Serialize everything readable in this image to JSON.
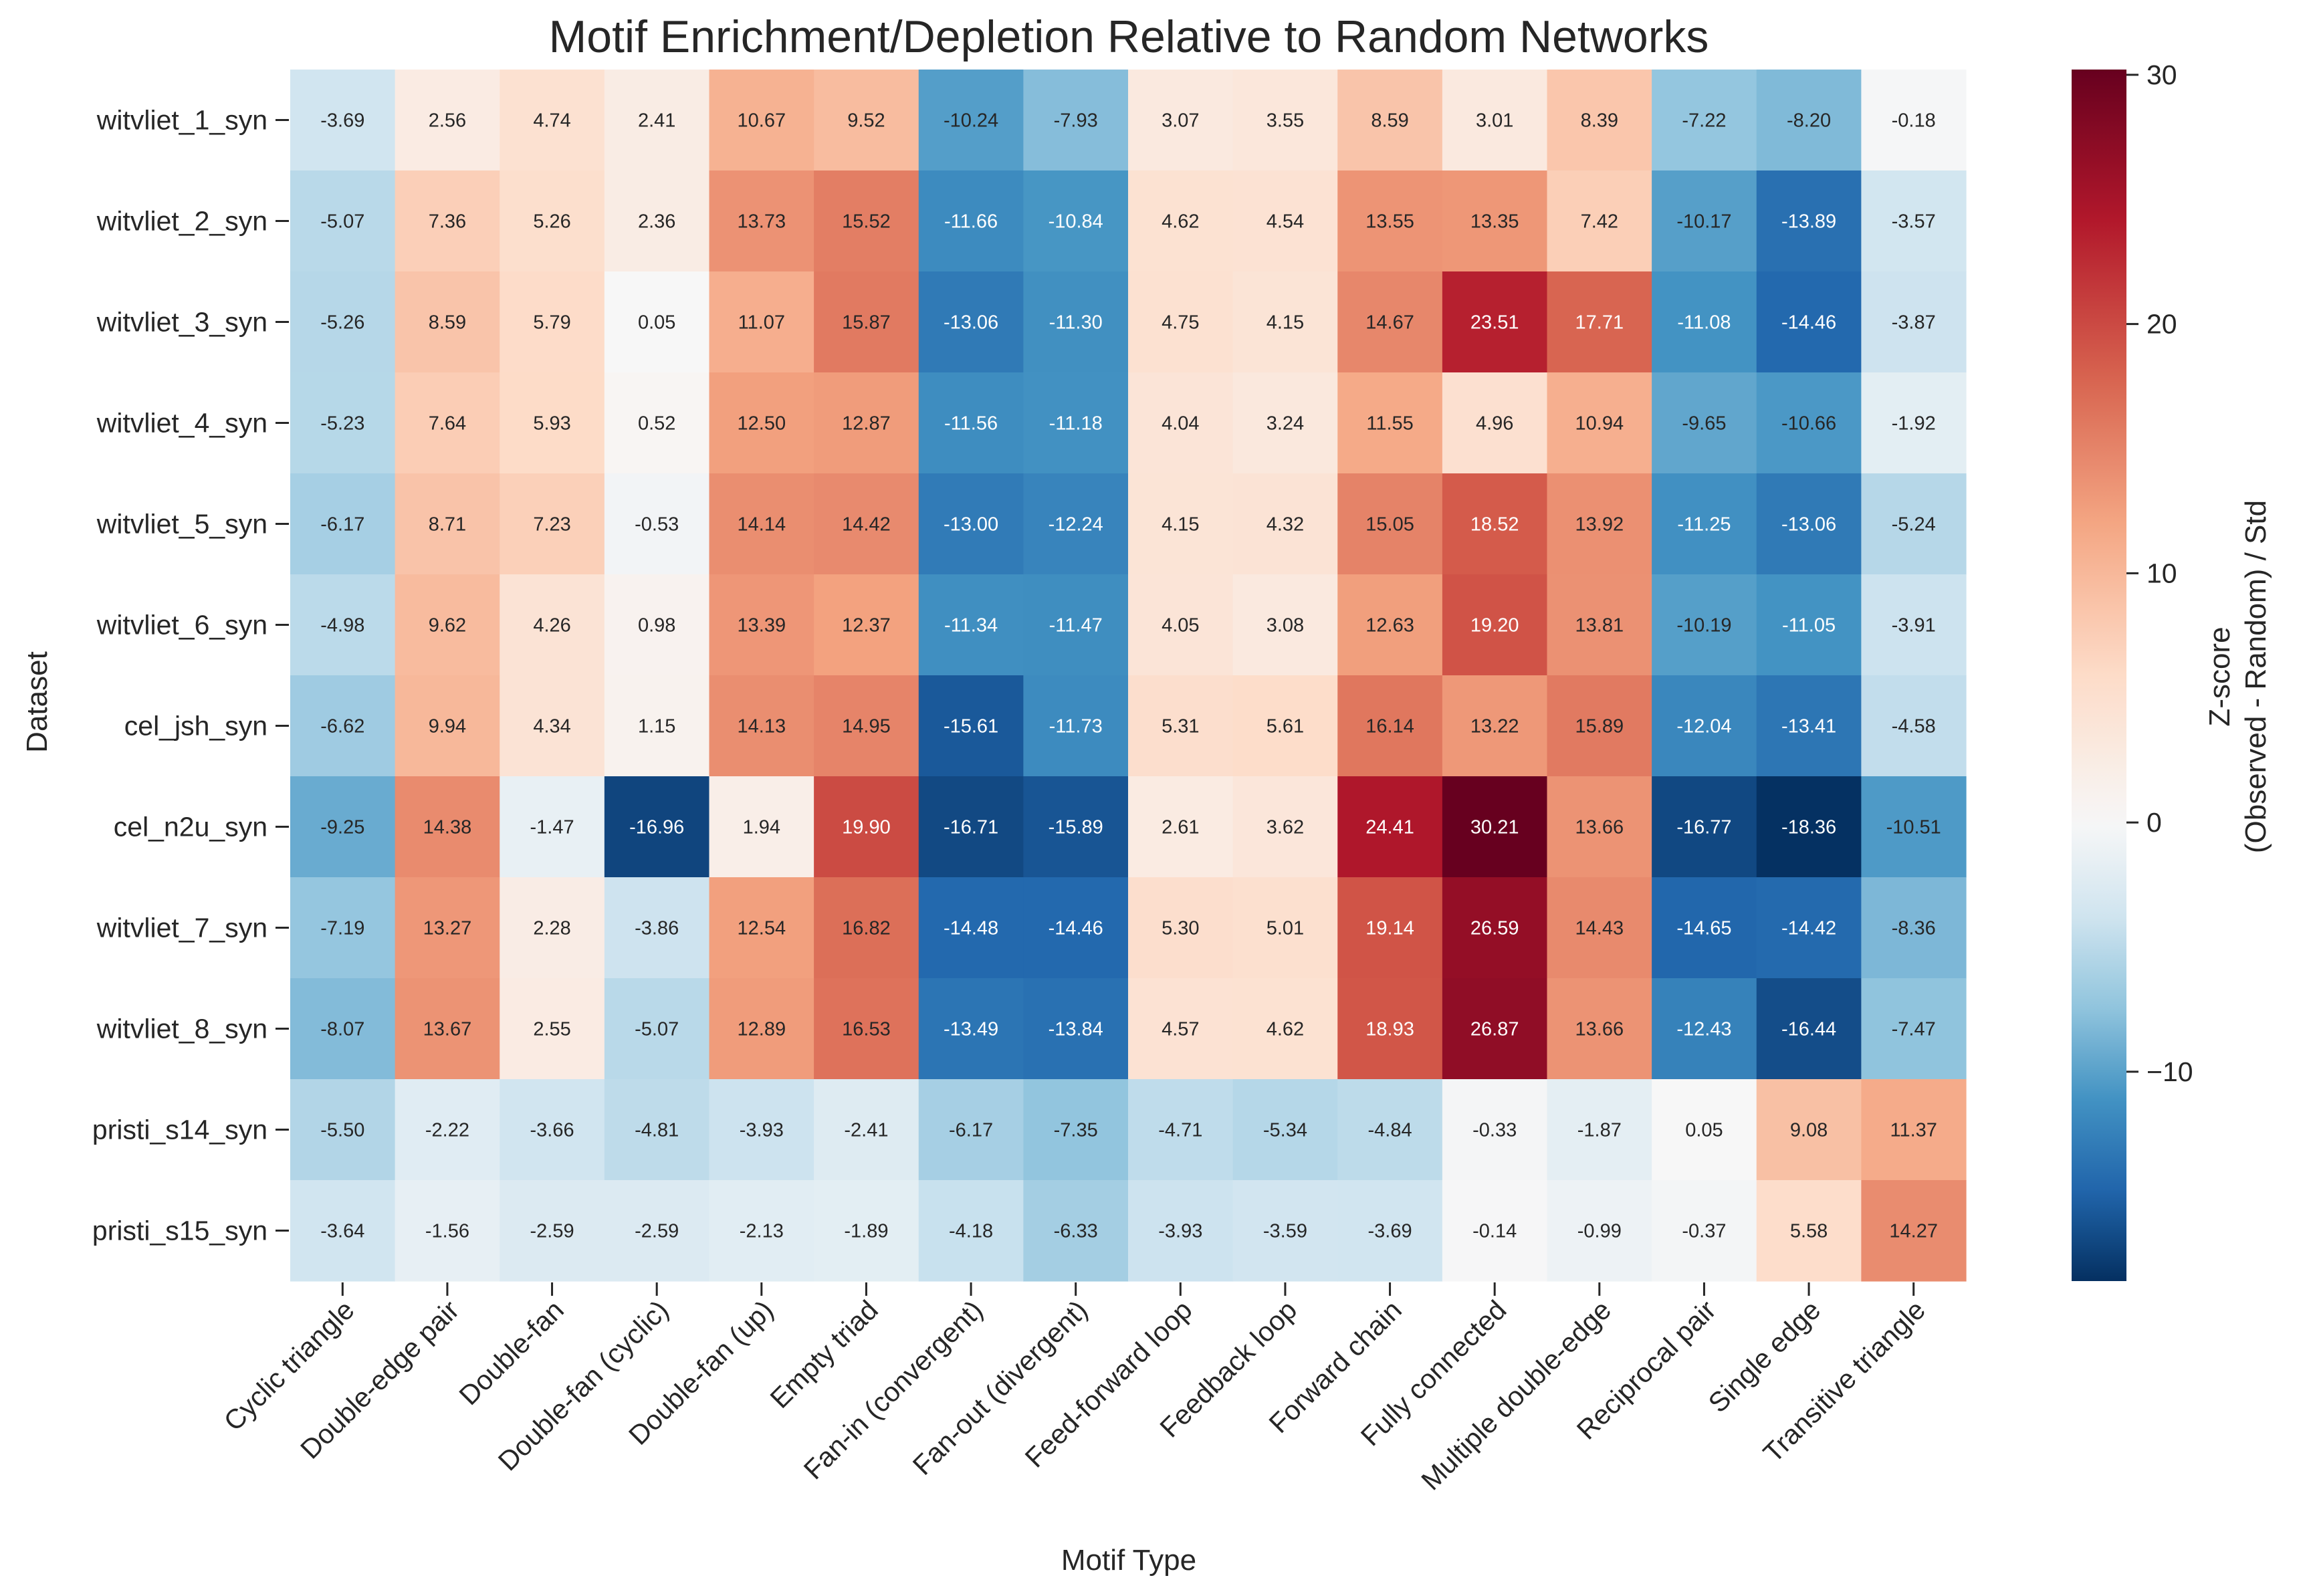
{
  "chart_data": {
    "type": "heatmap",
    "title": "Motif Enrichment/Depletion Relative to Random Networks",
    "xlabel": "Motif Type",
    "ylabel": "Dataset",
    "colorbar_label_line1": "Z-score",
    "colorbar_label_line2": "(Observed - Random) / Std",
    "colorbar_ticks": [
      30,
      20,
      10,
      0,
      -10
    ],
    "colorbar_ticks_text": [
      "30",
      "20",
      "10",
      "0",
      "−10"
    ],
    "vmin": -18.4,
    "vmax": 30.21,
    "colormap": "RdBu_r",
    "columns": [
      "Cyclic triangle",
      "Double-edge pair",
      "Double-fan",
      "Double-fan (cyclic)",
      "Double-fan (up)",
      "Empty triad",
      "Fan-in (convergent)",
      "Fan-out (divergent)",
      "Feed-forward loop",
      "Feedback loop",
      "Forward chain",
      "Fully connected",
      "Multiple double-edge",
      "Reciprocal pair",
      "Single edge",
      "Transitive triangle"
    ],
    "rows": [
      "witvliet_1_syn",
      "witvliet_2_syn",
      "witvliet_3_syn",
      "witvliet_4_syn",
      "witvliet_5_syn",
      "witvliet_6_syn",
      "cel_jsh_syn",
      "cel_n2u_syn",
      "witvliet_7_syn",
      "witvliet_8_syn",
      "pristi_s14_syn",
      "pristi_s15_syn"
    ],
    "values": [
      [
        -3.69,
        2.56,
        4.74,
        2.41,
        10.67,
        9.52,
        -10.24,
        -7.93,
        3.07,
        3.55,
        8.59,
        3.01,
        8.39,
        -7.22,
        -8.2,
        -0.18
      ],
      [
        -5.07,
        7.36,
        5.26,
        2.36,
        13.73,
        15.52,
        -11.66,
        -10.84,
        4.62,
        4.54,
        13.55,
        13.35,
        7.42,
        -10.17,
        -13.89,
        -3.57
      ],
      [
        -5.26,
        8.59,
        5.79,
        0.05,
        11.07,
        15.87,
        -13.06,
        -11.3,
        4.75,
        4.15,
        14.67,
        23.51,
        17.71,
        -11.08,
        -14.46,
        -3.87
      ],
      [
        -5.23,
        7.64,
        5.93,
        0.52,
        12.5,
        12.87,
        -11.56,
        -11.18,
        4.04,
        3.24,
        11.55,
        4.96,
        10.94,
        -9.65,
        -10.66,
        -1.92
      ],
      [
        -6.17,
        8.71,
        7.23,
        -0.53,
        14.14,
        14.42,
        -13.0,
        -12.24,
        4.15,
        4.32,
        15.05,
        18.52,
        13.92,
        -11.25,
        -13.06,
        -5.24
      ],
      [
        -4.98,
        9.62,
        4.26,
        0.98,
        13.39,
        12.37,
        -11.34,
        -11.47,
        4.05,
        3.08,
        12.63,
        19.2,
        13.81,
        -10.19,
        -11.05,
        -3.91
      ],
      [
        -6.62,
        9.94,
        4.34,
        1.15,
        14.13,
        14.95,
        -15.61,
        -11.73,
        5.31,
        5.61,
        16.14,
        13.22,
        15.89,
        -12.04,
        -13.41,
        -4.58
      ],
      [
        -9.25,
        14.38,
        -1.47,
        -16.96,
        1.94,
        19.9,
        -16.71,
        -15.89,
        2.61,
        3.62,
        24.41,
        30.21,
        13.66,
        -16.77,
        -18.36,
        -10.51
      ],
      [
        -7.19,
        13.27,
        2.28,
        -3.86,
        12.54,
        16.82,
        -14.48,
        -14.46,
        5.3,
        5.01,
        19.14,
        26.59,
        14.43,
        -14.65,
        -14.42,
        -8.36
      ],
      [
        -8.07,
        13.67,
        2.55,
        -5.07,
        12.89,
        16.53,
        -13.49,
        -13.84,
        4.57,
        4.62,
        18.93,
        26.87,
        13.66,
        -12.43,
        -16.44,
        -7.47
      ],
      [
        -5.5,
        -2.22,
        -3.66,
        -4.81,
        -3.93,
        -2.41,
        -6.17,
        -7.35,
        -4.71,
        -5.34,
        -4.84,
        -0.33,
        -1.87,
        0.05,
        9.08,
        11.37
      ],
      [
        -3.64,
        -1.56,
        -2.59,
        -2.59,
        -2.13,
        -1.89,
        -4.18,
        -6.33,
        -3.93,
        -3.59,
        -3.69,
        -0.14,
        -0.99,
        -0.37,
        5.58,
        14.27
      ]
    ],
    "value_labels": [
      [
        "-3.69",
        "2.56",
        "4.74",
        "2.41",
        "10.67",
        "9.52",
        "-10.24",
        "-7.93",
        "3.07",
        "3.55",
        "8.59",
        "3.01",
        "8.39",
        "-7.22",
        "-8.20",
        "-0.18"
      ],
      [
        "-5.07",
        "7.36",
        "5.26",
        "2.36",
        "13.73",
        "15.52",
        "-11.66",
        "-10.84",
        "4.62",
        "4.54",
        "13.55",
        "13.35",
        "7.42",
        "-10.17",
        "-13.89",
        "-3.57"
      ],
      [
        "-5.26",
        "8.59",
        "5.79",
        "0.05",
        "11.07",
        "15.87",
        "-13.06",
        "-11.30",
        "4.75",
        "4.15",
        "14.67",
        "23.51",
        "17.71",
        "-11.08",
        "-14.46",
        "-3.87"
      ],
      [
        "-5.23",
        "7.64",
        "5.93",
        "0.52",
        "12.50",
        "12.87",
        "-11.56",
        "-11.18",
        "4.04",
        "3.24",
        "11.55",
        "4.96",
        "10.94",
        "-9.65",
        "-10.66",
        "-1.92"
      ],
      [
        "-6.17",
        "8.71",
        "7.23",
        "-0.53",
        "14.14",
        "14.42",
        "-13.00",
        "-12.24",
        "4.15",
        "4.32",
        "15.05",
        "18.52",
        "13.92",
        "-11.25",
        "-13.06",
        "-5.24"
      ],
      [
        "-4.98",
        "9.62",
        "4.26",
        "0.98",
        "13.39",
        "12.37",
        "-11.34",
        "-11.47",
        "4.05",
        "3.08",
        "12.63",
        "19.20",
        "13.81",
        "-10.19",
        "-11.05",
        "-3.91"
      ],
      [
        "-6.62",
        "9.94",
        "4.34",
        "1.15",
        "14.13",
        "14.95",
        "-15.61",
        "-11.73",
        "5.31",
        "5.61",
        "16.14",
        "13.22",
        "15.89",
        "-12.04",
        "-13.41",
        "-4.58"
      ],
      [
        "-9.25",
        "14.38",
        "-1.47",
        "-16.96",
        "1.94",
        "19.90",
        "-16.71",
        "-15.89",
        "2.61",
        "3.62",
        "24.41",
        "30.21",
        "13.66",
        "-16.77",
        "-18.36",
        "-10.51"
      ],
      [
        "-7.19",
        "13.27",
        "2.28",
        "-3.86",
        "12.54",
        "16.82",
        "-14.48",
        "-14.46",
        "5.30",
        "5.01",
        "19.14",
        "26.59",
        "14.43",
        "-14.65",
        "-14.42",
        "-8.36"
      ],
      [
        "-8.07",
        "13.67",
        "2.55",
        "-5.07",
        "12.89",
        "16.53",
        "-13.49",
        "-13.84",
        "4.57",
        "4.62",
        "18.93",
        "26.87",
        "13.66",
        "-12.43",
        "-16.44",
        "-7.47"
      ],
      [
        "-5.50",
        "-2.22",
        "-3.66",
        "-4.81",
        "-3.93",
        "-2.41",
        "-6.17",
        "-7.35",
        "-4.71",
        "-5.34",
        "-4.84",
        "-0.33",
        "-1.87",
        "0.05",
        "9.08",
        "11.37"
      ],
      [
        "-3.64",
        "-1.56",
        "-2.59",
        "-2.59",
        "-2.13",
        "-1.89",
        "-4.18",
        "-6.33",
        "-3.93",
        "-3.59",
        "-3.69",
        "-0.14",
        "-0.99",
        "-0.37",
        "5.58",
        "14.27"
      ]
    ]
  }
}
